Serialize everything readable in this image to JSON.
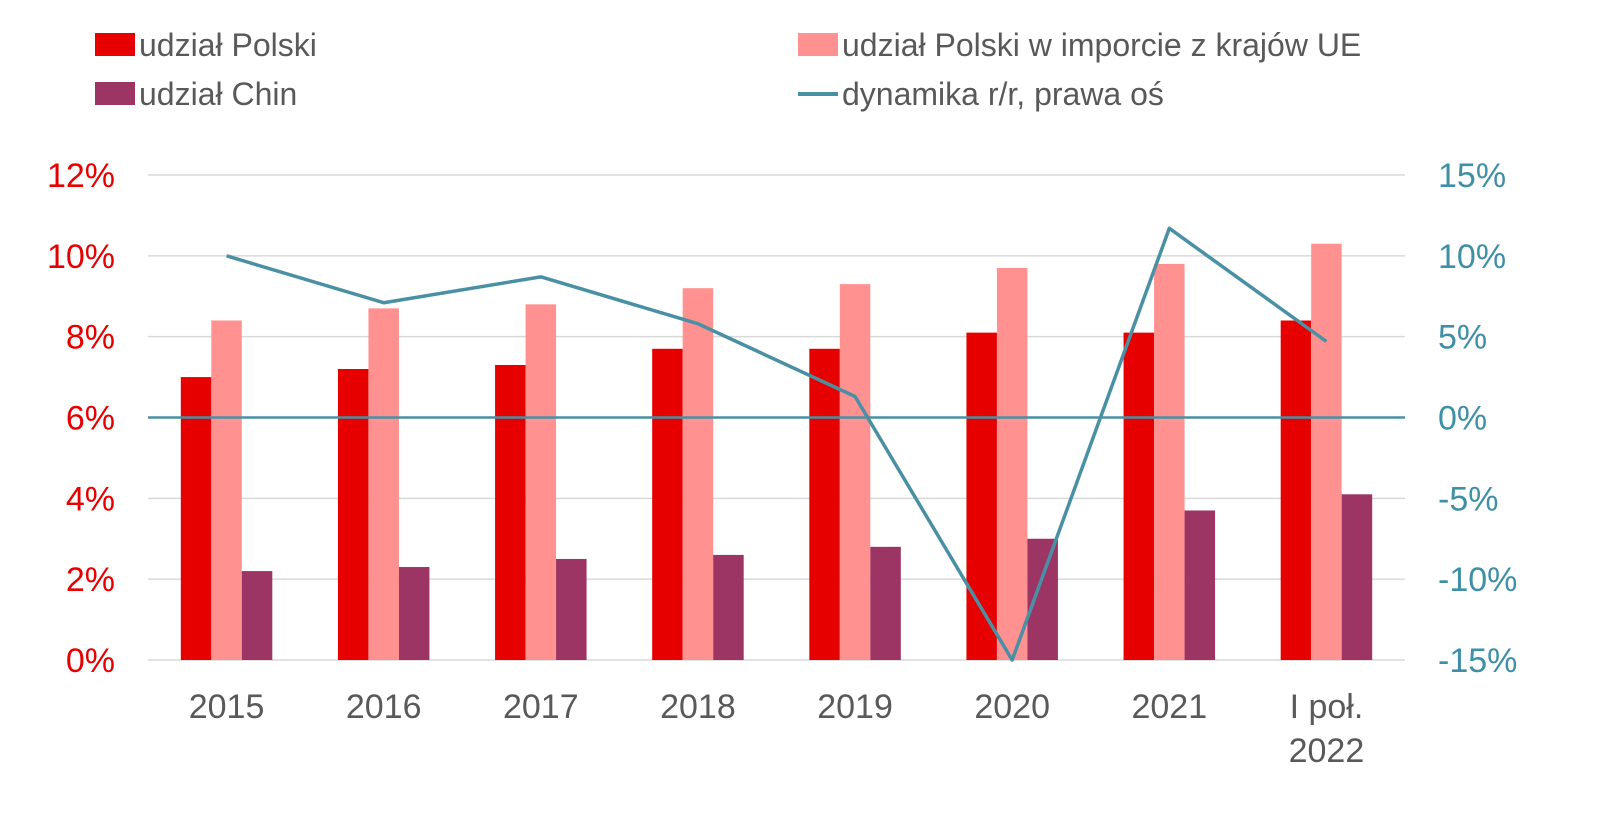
{
  "chart_data": {
    "type": "bar+line",
    "categories": [
      "2015",
      "2016",
      "2017",
      "2018",
      "2019",
      "2020",
      "2021",
      "I poł.|2022"
    ],
    "left_axis": {
      "ylim": [
        0,
        12
      ],
      "ticks": [
        "0%",
        "2%",
        "4%",
        "6%",
        "8%",
        "10%",
        "12%"
      ],
      "tick_values": [
        0,
        2,
        4,
        6,
        8,
        10,
        12
      ],
      "color": "#E60000"
    },
    "right_axis": {
      "ylim": [
        -15,
        15
      ],
      "ticks": [
        "-15%",
        "-10%",
        "-5%",
        "0%",
        "5%",
        "10%",
        "15%"
      ],
      "tick_values": [
        -15,
        -10,
        -5,
        0,
        5,
        10,
        15
      ],
      "color": "#3F8FA6"
    },
    "grid": true,
    "legend_position": "top",
    "series": [
      {
        "name": "udział Polski",
        "type": "bar",
        "axis": "left",
        "color": "#E60000",
        "values": [
          7.0,
          7.2,
          7.3,
          7.7,
          7.7,
          8.1,
          8.1,
          8.4
        ]
      },
      {
        "name": "udział Polski w imporcie z krajów UE",
        "type": "bar",
        "axis": "left",
        "color": "#FF9191",
        "values": [
          8.4,
          8.7,
          8.8,
          9.2,
          9.3,
          9.7,
          9.8,
          10.3
        ]
      },
      {
        "name": "udział Chin",
        "type": "bar",
        "axis": "left",
        "color": "#9C3464",
        "values": [
          2.2,
          2.3,
          2.5,
          2.6,
          2.8,
          3.0,
          3.7,
          4.1
        ]
      },
      {
        "name": "dynamika r/r, prawa oś",
        "type": "line",
        "axis": "right",
        "color": "#4A90A4",
        "values": [
          10.0,
          7.1,
          8.7,
          5.8,
          1.3,
          -15.0,
          11.7,
          4.7
        ]
      }
    ]
  }
}
